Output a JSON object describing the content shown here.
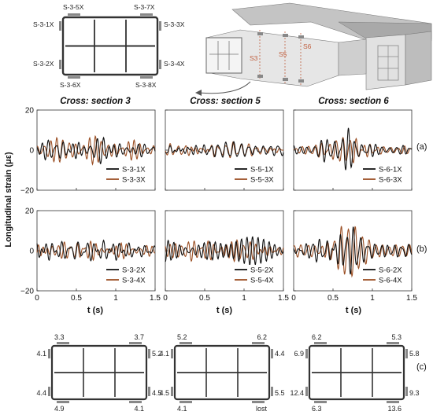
{
  "schematic": {
    "gauges": [
      "S-3-5X",
      "S-3-7X",
      "S-3-1X",
      "S-3-3X",
      "S-3-2X",
      "S-3-4X",
      "S-3-6X",
      "S-3-8X"
    ],
    "section_marks": [
      "S3",
      "S5",
      "S6"
    ]
  },
  "row_labels": [
    "(a)",
    "(b)",
    "(c)"
  ],
  "axis": {
    "ylabel": "Longitudinal strain (με)",
    "xlabel": "t (s)",
    "yticks": [
      "20",
      "0",
      "−20"
    ],
    "xticks": [
      "0",
      "0.5",
      "1",
      "1.5"
    ]
  },
  "colors": {
    "series_a": "#111111",
    "series_b": "#9b4f24",
    "section_fill": "#ffffff",
    "gauge_mark": "#888888"
  },
  "chart_data": [
    {
      "type": "line",
      "title": "Cross: section 3",
      "row": "(a)",
      "xlabel": "",
      "ylabel": "Longitudinal strain (με)",
      "xlim": [
        0,
        1.5
      ],
      "ylim": [
        -20,
        20
      ],
      "series": [
        {
          "name": "S-3-1X",
          "amplitude": 4,
          "envelope": "uniform"
        },
        {
          "name": "S-3-3X",
          "amplitude": 3.5,
          "envelope": "uniform"
        }
      ]
    },
    {
      "type": "line",
      "title": "Cross: section 5",
      "row": "(a)",
      "xlabel": "",
      "ylabel": "",
      "xlim": [
        0,
        1.5
      ],
      "ylim": [
        -20,
        20
      ],
      "series": [
        {
          "name": "S-5-1X",
          "amplitude": 3.5,
          "envelope": "uniform"
        },
        {
          "name": "S-5-3X",
          "amplitude": 3,
          "envelope": "uniform"
        }
      ]
    },
    {
      "type": "line",
      "title": "Cross: section 6",
      "row": "(a)",
      "xlabel": "",
      "ylabel": "",
      "xlim": [
        0,
        1.5
      ],
      "ylim": [
        -20,
        20
      ],
      "series": [
        {
          "name": "S-6-1X",
          "amplitude": 9,
          "envelope": "burst"
        },
        {
          "name": "S-6-3X",
          "amplitude": 8,
          "envelope": "burst"
        }
      ]
    },
    {
      "type": "line",
      "title": "",
      "row": "(b)",
      "xlabel": "t (s)",
      "ylabel": "",
      "xlim": [
        0,
        1.5
      ],
      "ylim": [
        -20,
        20
      ],
      "series": [
        {
          "name": "S-3-2X",
          "amplitude": 4,
          "envelope": "uniform"
        },
        {
          "name": "S-3-4X",
          "amplitude": 3.5,
          "envelope": "uniform"
        }
      ]
    },
    {
      "type": "line",
      "title": "",
      "row": "(b)",
      "xlabel": "t (s)",
      "ylabel": "",
      "xlim": [
        0,
        1.5
      ],
      "ylim": [
        -20,
        20
      ],
      "series": [
        {
          "name": "S-5-2X",
          "amplitude": 6,
          "envelope": "mild"
        },
        {
          "name": "S-5-4X",
          "amplitude": 5,
          "envelope": "mild"
        }
      ]
    },
    {
      "type": "line",
      "title": "",
      "row": "(b)",
      "xlabel": "t (s)",
      "ylabel": "",
      "xlim": [
        0,
        1.5
      ],
      "ylim": [
        -20,
        20
      ],
      "series": [
        {
          "name": "S-6-2X",
          "amplitude": 14,
          "envelope": "burst"
        },
        {
          "name": "S-6-4X",
          "amplitude": 12,
          "envelope": "burst"
        }
      ]
    }
  ],
  "section_values": [
    {
      "top_left": "3.3",
      "top_right": "3.7",
      "left_top": "4.1",
      "right_top": "5.2",
      "left_bottom": "4.4",
      "right_bottom": "4.5",
      "bottom_left": "4.9",
      "bottom_right": "4.1"
    },
    {
      "top_left": "5.2",
      "top_right": "6.2",
      "left_top": "4.1",
      "right_top": "4.4",
      "left_bottom": "4.5",
      "right_bottom": "5.5",
      "bottom_left": "4.1",
      "bottom_right": "lost"
    },
    {
      "top_left": "6.2",
      "top_right": "5.3",
      "left_top": "6.9",
      "right_top": "5.8",
      "left_bottom": "12.4",
      "right_bottom": "9.3",
      "bottom_left": "6.3",
      "bottom_right": "13.6"
    }
  ]
}
